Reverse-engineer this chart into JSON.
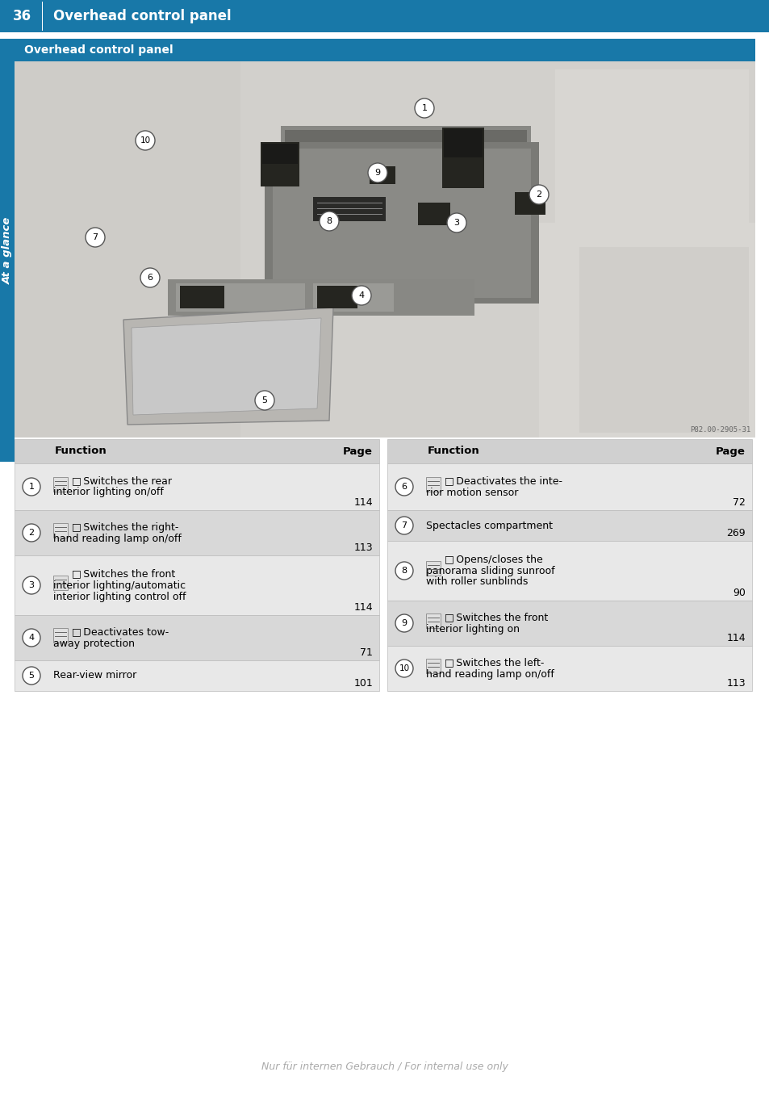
{
  "page_num": "36",
  "page_title": "Overhead control panel",
  "section_title": "Overhead control panel",
  "section_subtitle": "At a glance",
  "header_bg": "#1878a8",
  "sidebar_bg": "#1878a8",
  "section_header_bg": "#1878a8",
  "image_caption": "P82.00-2905-31",
  "footer_text": "Nur für internen Gebrauch / For internal use only",
  "table_header_bg": "#d0d0d0",
  "row_bg_odd": "#e8e8e8",
  "row_bg_even": "#d8d8d8",
  "border_color": "#bbbbbb",
  "left_table": [
    {
      "num": "1",
      "has_icon": true,
      "line1": "□ Switches the rear",
      "line2": "interior lighting on/off",
      "line3": "",
      "page": "114"
    },
    {
      "num": "2",
      "has_icon": true,
      "line1": "□ Switches the right-",
      "line2": "hand reading lamp on/off",
      "line3": "",
      "page": "113"
    },
    {
      "num": "3",
      "has_icon": true,
      "line1": "□ Switches the front",
      "line2": "interior lighting/automatic",
      "line3": "interior lighting control off",
      "page": "114"
    },
    {
      "num": "4",
      "has_icon": true,
      "line1": "□ Deactivates tow-",
      "line2": "away protection",
      "line3": "",
      "page": "71"
    },
    {
      "num": "5",
      "has_icon": false,
      "line1": "Rear-view mirror",
      "line2": "",
      "line3": "",
      "page": "101"
    }
  ],
  "right_table": [
    {
      "num": "6",
      "has_icon": true,
      "line1": "□ Deactivates the inte-",
      "line2": "rior motion sensor",
      "line3": "",
      "page": "72"
    },
    {
      "num": "7",
      "has_icon": false,
      "line1": "Spectacles compartment",
      "line2": "",
      "line3": "",
      "page": "269"
    },
    {
      "num": "8",
      "has_icon": true,
      "line1": "□ Opens/closes the",
      "line2": "panorama sliding sunroof",
      "line3": "with roller sunblinds",
      "page": "90"
    },
    {
      "num": "9",
      "has_icon": true,
      "line1": "□ Switches the front",
      "line2": "interior lighting on",
      "line3": "",
      "page": "114"
    },
    {
      "num": "10",
      "has_icon": true,
      "line1": "□ Switches the left-",
      "line2": "hand reading lamp on/off",
      "line3": "",
      "page": "113"
    }
  ]
}
